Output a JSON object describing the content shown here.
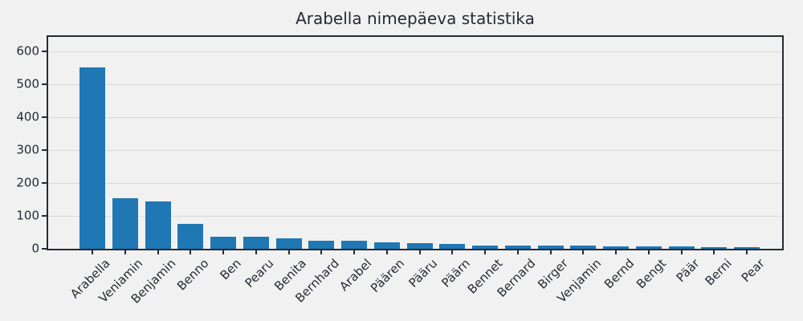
{
  "title": "Arabella nimepäeva statistika",
  "chart_data": {
    "type": "bar",
    "title": "Arabella nimepäeva statistika",
    "categories": [
      "Arabella",
      "Veniamin",
      "Benjamin",
      "Benno",
      "Ben",
      "Pearu",
      "Benita",
      "Bernhard",
      "Arabel",
      "Päären",
      "Pääru",
      "Päärn",
      "Bennet",
      "Bernard",
      "Birger",
      "Venjamin",
      "Bernd",
      "Bengt",
      "Päär",
      "Berni",
      "Pear"
    ],
    "values": [
      550,
      153,
      144,
      75,
      36,
      37,
      31,
      25,
      24,
      19,
      17,
      14,
      10,
      10,
      9,
      9,
      8,
      7,
      7,
      6,
      6
    ],
    "xlabel": "",
    "ylabel": "",
    "yticks": [
      0,
      100,
      200,
      300,
      400,
      500,
      600
    ],
    "ylim": [
      0,
      643
    ],
    "grid": "horizontal",
    "legend": "none",
    "x_tick_rotation": 45,
    "colors": {
      "bar": "#1f77b4",
      "background": "#f1f1f2",
      "gridline": "#d9d9dc",
      "spine": "#262a33",
      "text": "#262a33"
    }
  }
}
